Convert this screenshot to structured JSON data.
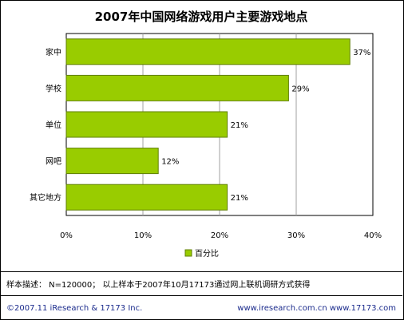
{
  "chart_data": {
    "type": "bar",
    "orientation": "horizontal",
    "title": "2007年中国网络游戏用户主要游戏地点",
    "categories": [
      "家中",
      "学校",
      "单位",
      "网吧",
      "其它地方"
    ],
    "series": [
      {
        "name": "百分比",
        "values": [
          37,
          29,
          21,
          12,
          21
        ]
      }
    ],
    "data_labels": [
      "37%",
      "29%",
      "21%",
      "12%",
      "21%"
    ],
    "x_ticks": [
      0,
      10,
      20,
      30,
      40
    ],
    "x_tick_labels": [
      "0%",
      "10%",
      "20%",
      "30%",
      "40%"
    ],
    "xlim": [
      0,
      40
    ],
    "grid": true,
    "legend_position": "bottom",
    "colors": {
      "bar": "#99cc00",
      "bar_border": "#5f7f00"
    }
  },
  "footer": {
    "note": "样本描述： N=120000； 以上样本于2007年10月17173通过网上联机调研方式获得",
    "copyright": "©2007.11 iResearch & 17173 Inc.",
    "urls": "www.iresearch.com.cn   www.17173.com"
  }
}
